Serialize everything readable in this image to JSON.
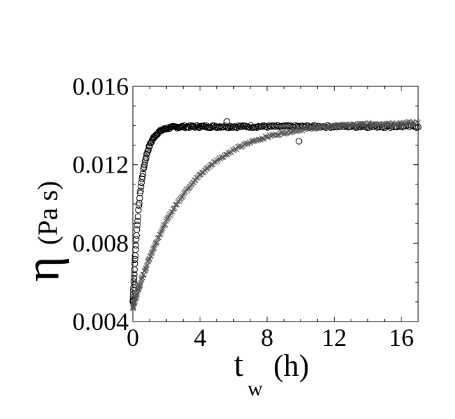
{
  "chart_data": {
    "type": "scatter",
    "xlabel": "t",
    "xlabel_subscript": "w",
    "xlabel_unit": "(h)",
    "ylabel_symbol": "η",
    "ylabel_unit": "(Pa s)",
    "xlim": [
      0,
      17
    ],
    "ylim": [
      0.004,
      0.016
    ],
    "x_ticks": [
      0,
      4,
      8,
      12,
      16
    ],
    "y_ticks": [
      0.004,
      0.008,
      0.012,
      0.016
    ],
    "x_tick_labels": [
      "0",
      "4",
      "8",
      "12",
      "16"
    ],
    "y_tick_labels": [
      "0.004",
      "0.008",
      "0.012",
      "0.016"
    ],
    "grid": false,
    "legend": "none",
    "series": [
      {
        "marker": "circle",
        "color": "#000000",
        "model": {
          "plateau": 0.01395,
          "start": 0.005,
          "tau": 0.45
        },
        "x_range": [
          0,
          17
        ],
        "n_points": 260,
        "outliers": [
          [
            0.1,
            0.0059
          ],
          [
            5.6,
            0.0142
          ],
          [
            9.9,
            0.0132
          ]
        ]
      },
      {
        "marker": "cross",
        "color": "#555555",
        "model": {
          "plateau": 0.0142,
          "start": 0.0047,
          "tau": 3.2
        },
        "x_range": [
          0,
          17
        ],
        "n_points": 300,
        "outliers": []
      }
    ]
  }
}
